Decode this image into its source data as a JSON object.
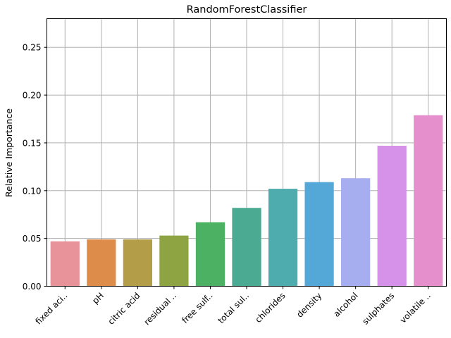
{
  "chart_data": {
    "type": "bar",
    "title": "RandomForestClassifier",
    "xlabel": "",
    "ylabel": "Relative Importance",
    "ylim": [
      0,
      0.28
    ],
    "yticks": [
      "0.00",
      "0.05",
      "0.10",
      "0.15",
      "0.20",
      "0.25"
    ],
    "grid": true,
    "categories": [
      "fixed aci..",
      "pH",
      "citric acid",
      "residual ..",
      "free sulf..",
      "total sul..",
      "chlorides",
      "density",
      "alcohol",
      "sulphates",
      "volatile .."
    ],
    "values": [
      0.047,
      0.049,
      0.049,
      0.053,
      0.067,
      0.082,
      0.102,
      0.109,
      0.113,
      0.147,
      0.179
    ],
    "colors": [
      "#e8939a",
      "#dd8d49",
      "#b39d48",
      "#8ea443",
      "#4cb163",
      "#4aab92",
      "#4eacae",
      "#54a8d8",
      "#a7aef0",
      "#d592e8",
      "#e68fcd"
    ]
  }
}
